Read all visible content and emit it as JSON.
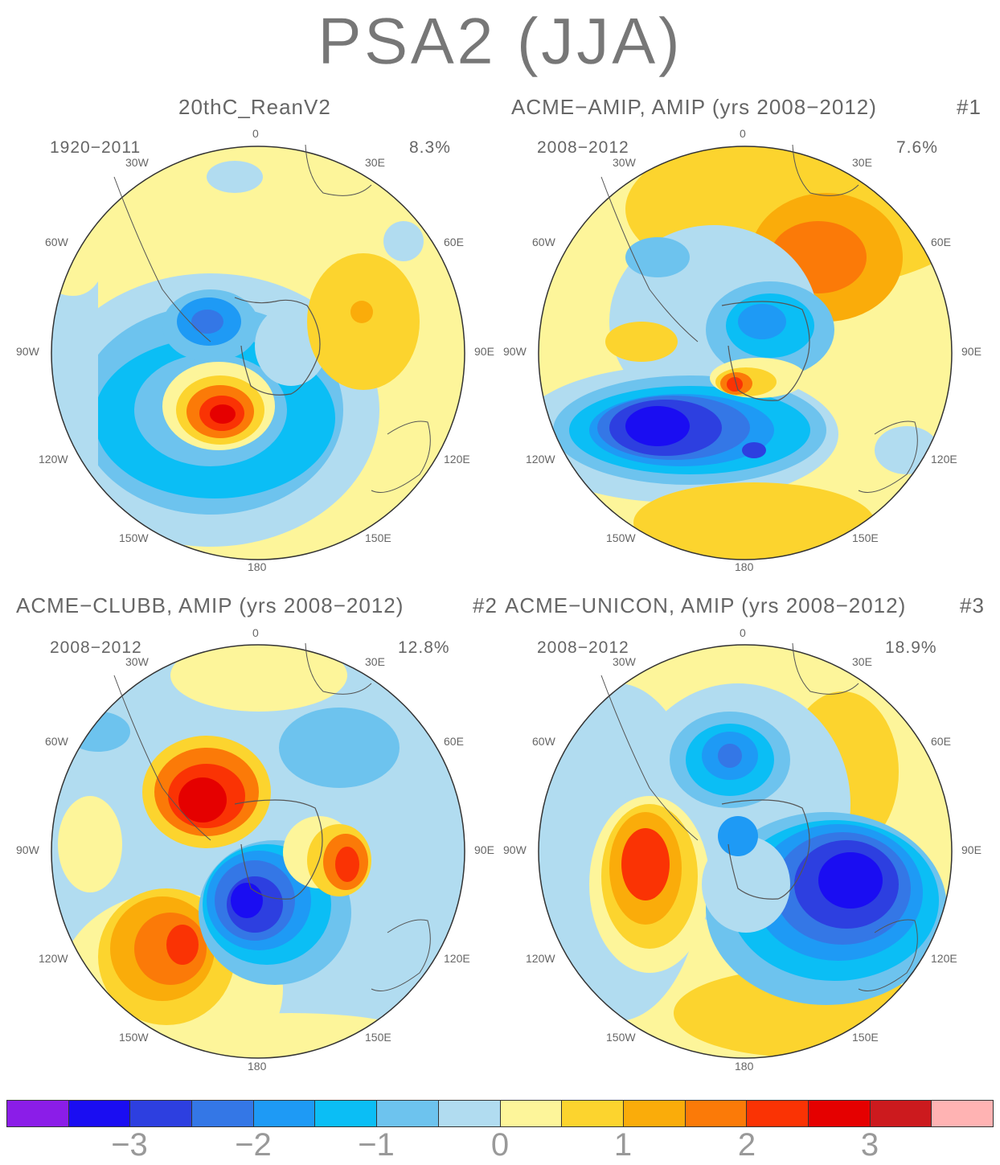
{
  "title": "PSA2 (JJA)",
  "panels": [
    {
      "title": "20thC_ReanV2",
      "tag": "",
      "years": "1920-2011",
      "pct": "8.3%"
    },
    {
      "title": "ACME-AMIP, AMIP (yrs 2008-2012)",
      "tag": "#1",
      "years": "2008-2012",
      "pct": "7.6%"
    },
    {
      "title": "ACME-CLUBB, AMIP (yrs 2008-2012)",
      "tag": "#2",
      "years": "2008-2012",
      "pct": "12.8%"
    },
    {
      "title": "ACME-UNICON, AMIP (yrs 2008-2012)",
      "tag": "#3",
      "years": "2008-2012",
      "pct": "18.9%"
    }
  ],
  "lon_labels": {
    "l0": "0",
    "l30e": "30E",
    "l60e": "60E",
    "l90e": "90E",
    "l120e": "120E",
    "l150e": "150E",
    "l180": "180",
    "l150w": "150W",
    "l120w": "120W",
    "l90w": "90W",
    "l60w": "60W",
    "l30w": "30W"
  },
  "colorbar": {
    "colors": [
      "#8b1de8",
      "#1a0df2",
      "#2d3fe0",
      "#3477e6",
      "#1e9af5",
      "#0bbef5",
      "#6dc3ee",
      "#b1dcf0",
      "#fdf59a",
      "#fcd42e",
      "#faac0a",
      "#fb7a08",
      "#fa3304",
      "#e50000",
      "#cc1a1e",
      "#ffb3b3"
    ],
    "labels": [
      "-3",
      "-2",
      "-1",
      "0",
      "1",
      "2",
      "3"
    ]
  }
}
